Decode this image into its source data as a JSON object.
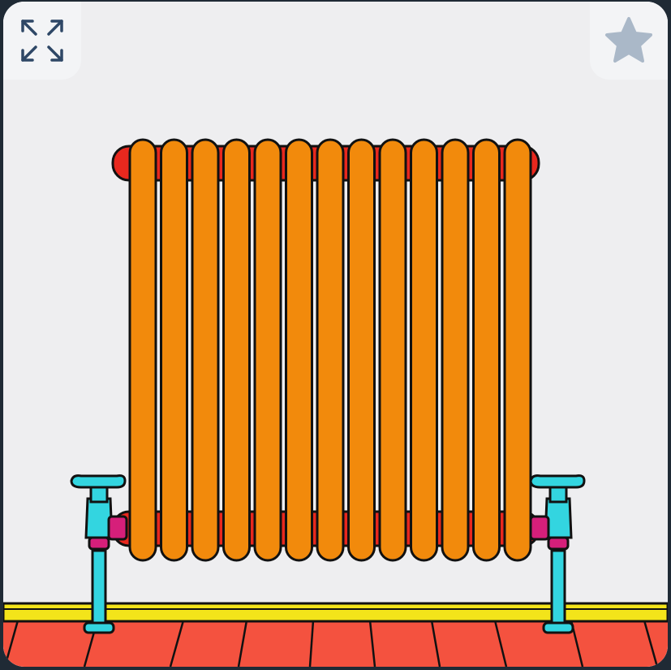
{
  "scene": {
    "subject": "radiator",
    "colors": {
      "wall": "#eeeef0",
      "fin": "#f28a0c",
      "header_pipe": "#e8281e",
      "valve": "#33d5e0",
      "valve_joint": "#d61f7a",
      "skirting": "#f3e41a",
      "floor": "#f4523f",
      "outline": "#111111"
    }
  },
  "controls": {
    "fullscreen_icon": "expand-arrows-icon",
    "favorite_icon": "star-icon"
  }
}
